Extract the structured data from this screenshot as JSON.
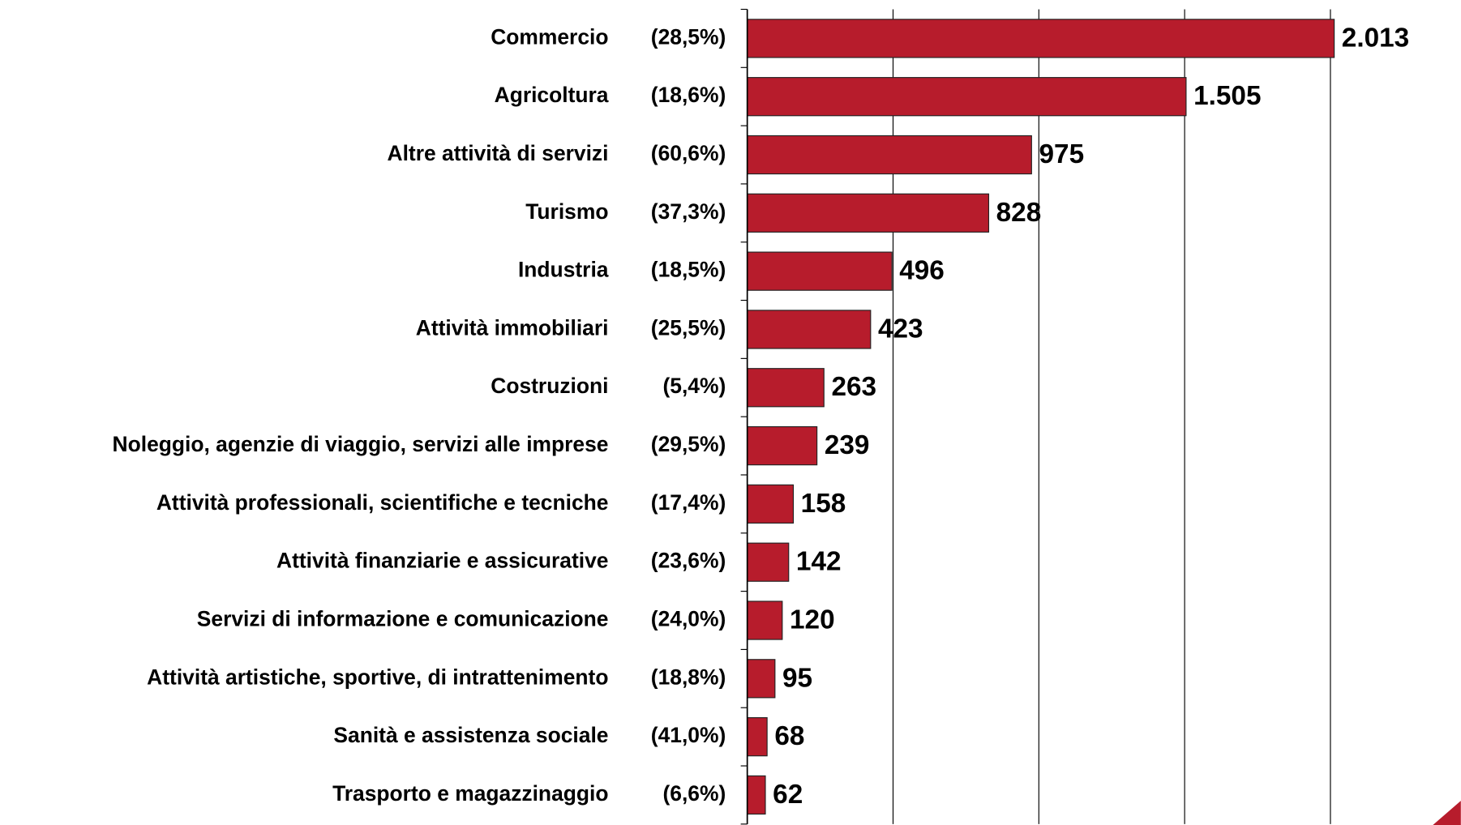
{
  "chart_data": {
    "type": "hbar",
    "categories": [
      "Commercio",
      "Agricoltura",
      "Altre attività di servizi",
      "Turismo",
      "Industria",
      "Attività immobiliari",
      "Costruzioni",
      "Noleggio, agenzie di viaggio, servizi alle imprese",
      "Attività professionali, scientifiche e tecniche",
      "Attività finanziarie e assicurative",
      "Servizi di informazione e comunicazione",
      "Attività artistiche, sportive, di intrattenimento",
      "Sanità e assistenza sociale",
      "Trasporto e magazzinaggio"
    ],
    "category_shares": [
      "(28,5%)",
      "(18,6%)",
      "(60,6%)",
      "(37,3%)",
      "(18,5%)",
      "(25,5%)",
      "(5,4%)",
      "(29,5%)",
      "(17,4%)",
      "(23,6%)",
      "(24,0%)",
      "(18,8%)",
      "(41,0%)",
      "(6,6%)"
    ],
    "values": [
      2013,
      1505,
      975,
      828,
      496,
      423,
      263,
      239,
      158,
      142,
      120,
      95,
      68,
      62
    ],
    "value_labels": [
      "2.013",
      "1.505",
      "975",
      "828",
      "496",
      "423",
      "263",
      "239",
      "158",
      "142",
      "120",
      "95",
      "68",
      "62"
    ],
    "color": "#b71c2c",
    "xlim": [
      0,
      2000
    ],
    "xticks": [
      0,
      500,
      1000,
      1500,
      2000
    ],
    "grid": true
  }
}
